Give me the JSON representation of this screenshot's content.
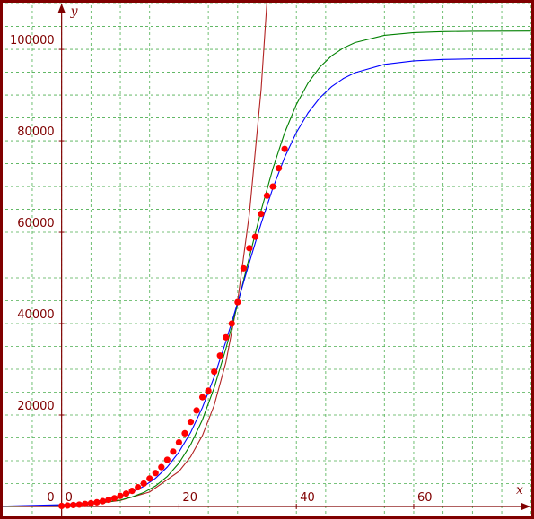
{
  "chart_data": {
    "type": "line",
    "x_label": "x",
    "y_label": "y",
    "xlim": [
      -10.5,
      80.5
    ],
    "ylim": [
      -2750,
      110800
    ],
    "xticks": [
      0,
      20,
      40,
      60
    ],
    "yticks": [
      0,
      20000,
      40000,
      60000,
      80000,
      100000
    ],
    "xgrid": [
      -5,
      0,
      5,
      10,
      15,
      20,
      25,
      30,
      35,
      40,
      45,
      50,
      55,
      60,
      65,
      70,
      75,
      80
    ],
    "ygrid": [
      0,
      5000,
      10000,
      15000,
      20000,
      25000,
      30000,
      35000,
      40000,
      45000,
      50000,
      55000,
      60000,
      65000,
      70000,
      75000,
      80000,
      85000,
      90000,
      95000,
      100000,
      105000,
      110000
    ],
    "grid": true,
    "series": [
      {
        "type": "line",
        "color": "#b22222",
        "x": [
          -10,
          0,
          5,
          10,
          15,
          20,
          22,
          24,
          26,
          28,
          30,
          32,
          34,
          36
        ],
        "values": [
          38,
          222,
          538,
          1303,
          3157,
          7652,
          10894,
          15530,
          22130,
          31540,
          44950,
          64050,
          91260,
          129900
        ]
      },
      {
        "type": "line",
        "color": "#008000",
        "x": [
          -10,
          0,
          5,
          10,
          12,
          14,
          16,
          18,
          20,
          22,
          24,
          26,
          28,
          30,
          32,
          34,
          36,
          38,
          40,
          42,
          44,
          46,
          48,
          50,
          55,
          60,
          65,
          70,
          80
        ],
        "values": [
          26,
          190,
          518,
          1393,
          2067,
          3050,
          4483,
          6549,
          9480,
          13531,
          18971,
          25974,
          34506,
          44255,
          54593,
          64731,
          73934,
          81730,
          87935,
          92652,
          96109,
          98578,
          100299,
          101493,
          103062,
          103653,
          103872,
          103953,
          103994
        ]
      },
      {
        "type": "line",
        "color": "#0000ff",
        "x": [
          -10,
          0,
          5,
          10,
          12,
          14,
          16,
          18,
          20,
          22,
          24,
          26,
          28,
          30,
          32,
          34,
          36,
          38,
          40,
          42,
          44,
          46,
          48,
          50,
          55,
          60,
          65,
          70,
          80
        ],
        "values": [
          61,
          369,
          899,
          2187,
          3101,
          4396,
          6163,
          8611,
          11893,
          16198,
          21657,
          28324,
          36082,
          44606,
          53406,
          61908,
          69665,
          76343,
          81803,
          86116,
          89392,
          91830,
          93609,
          94897,
          96714,
          97474,
          97786,
          97913,
          97986
        ]
      },
      {
        "type": "scatter",
        "color": "#ff0000",
        "x": [
          0,
          1,
          2,
          3,
          4,
          5,
          6,
          7,
          8,
          9,
          10,
          11,
          12,
          13,
          14,
          15,
          16,
          17,
          18,
          19,
          20,
          21,
          22,
          23,
          24,
          25,
          26,
          27,
          28,
          29,
          30,
          31,
          32,
          33,
          34,
          35,
          36,
          37,
          38
        ],
        "values": [
          100,
          200,
          300,
          400,
          550,
          700,
          900,
          1150,
          1450,
          1800,
          2300,
          2800,
          3400,
          4200,
          5000,
          6100,
          7300,
          8600,
          10200,
          12000,
          14000,
          16000,
          18500,
          21000,
          23900,
          25300,
          29500,
          33000,
          37000,
          40000,
          44700,
          52100,
          56500,
          59000,
          64000,
          68000,
          70000,
          74000,
          78200
        ]
      }
    ]
  }
}
